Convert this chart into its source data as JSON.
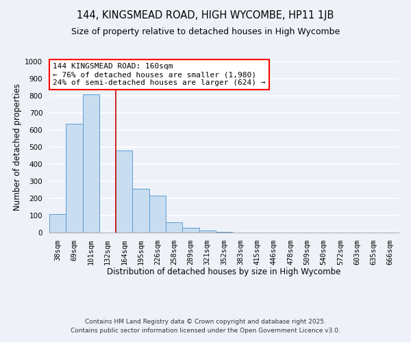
{
  "title": "144, KINGSMEAD ROAD, HIGH WYCOMBE, HP11 1JB",
  "subtitle": "Size of property relative to detached houses in High Wycombe",
  "xlabel": "Distribution of detached houses by size in High Wycombe",
  "ylabel": "Number of detached properties",
  "bar_labels": [
    "38sqm",
    "69sqm",
    "101sqm",
    "132sqm",
    "164sqm",
    "195sqm",
    "226sqm",
    "258sqm",
    "289sqm",
    "321sqm",
    "352sqm",
    "383sqm",
    "415sqm",
    "446sqm",
    "478sqm",
    "509sqm",
    "540sqm",
    "572sqm",
    "603sqm",
    "635sqm",
    "666sqm"
  ],
  "bar_values": [
    110,
    635,
    810,
    0,
    480,
    255,
    215,
    60,
    27,
    13,
    5,
    0,
    0,
    0,
    0,
    0,
    0,
    0,
    0,
    0,
    0
  ],
  "ylim": [
    0,
    1000
  ],
  "yticks": [
    0,
    100,
    200,
    300,
    400,
    500,
    600,
    700,
    800,
    900,
    1000
  ],
  "bar_color": "#c8ddf0",
  "bar_edge_color": "#5b9bd5",
  "vline_color": "#cc0000",
  "vline_pos": 3.5,
  "annotation_text_line1": "144 KINGSMEAD ROAD: 160sqm",
  "annotation_text_line2": "← 76% of detached houses are smaller (1,980)",
  "annotation_text_line3": "24% of semi-detached houses are larger (624) →",
  "footer_line1": "Contains HM Land Registry data © Crown copyright and database right 2025.",
  "footer_line2": "Contains public sector information licensed under the Open Government Licence v3.0.",
  "bg_color": "#eef2f8",
  "grid_color": "#ffffff",
  "title_fontsize": 10.5,
  "subtitle_fontsize": 9,
  "axis_label_fontsize": 8.5,
  "tick_fontsize": 7.5,
  "annotation_fontsize": 8,
  "footer_fontsize": 6.5
}
